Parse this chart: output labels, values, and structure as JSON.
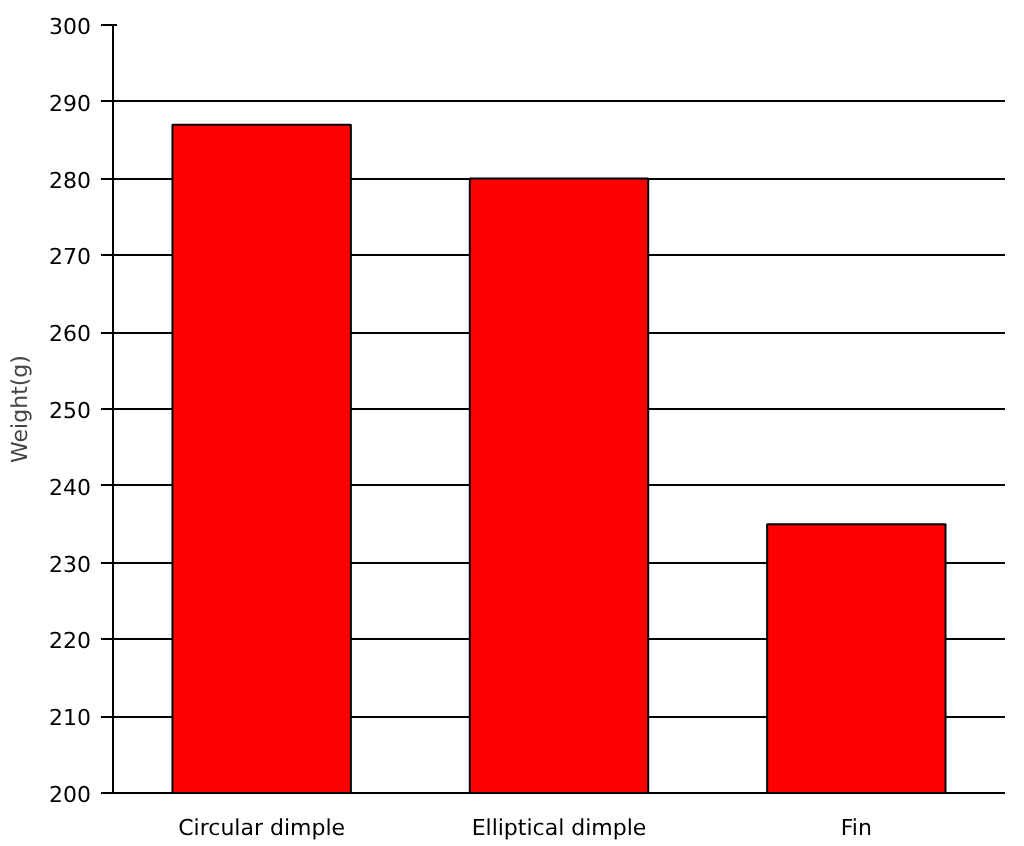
{
  "chart_data": {
    "type": "bar",
    "ylabel": "Weight(g)",
    "categories": [
      "Circular dimple",
      "Elliptical dimple",
      "Fin"
    ],
    "values": [
      287,
      280,
      235
    ],
    "color": "#ff0000",
    "ylim": [
      200,
      300
    ],
    "yticks": [
      200,
      210,
      220,
      230,
      240,
      250,
      260,
      270,
      280,
      290,
      300
    ],
    "grid": "y"
  }
}
